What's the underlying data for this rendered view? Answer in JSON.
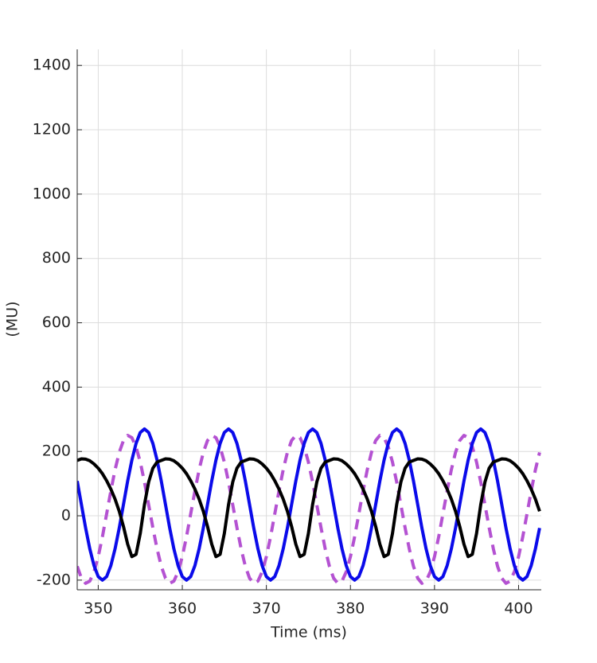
{
  "chart_data": {
    "type": "line",
    "xlabel": "Time (ms)",
    "ylabel": "(MU)",
    "xlim": [
      347.5,
      402.7
    ],
    "ylim": [
      -230,
      1450
    ],
    "xticks": [
      350,
      360,
      370,
      380,
      390,
      400
    ],
    "yticks": [
      -200,
      0,
      200,
      400,
      600,
      800,
      1000,
      1200,
      1400
    ],
    "grid": true,
    "x": [
      347.5,
      348,
      348.5,
      349,
      349.5,
      350,
      350.5,
      351,
      351.5,
      352,
      352.5,
      353,
      353.5,
      354,
      354.5,
      355,
      355.5,
      356,
      356.5,
      357,
      357.5,
      358,
      358.5,
      359,
      359.5,
      360,
      360.5,
      361,
      361.5,
      362,
      362.5,
      363,
      363.5,
      364,
      364.5,
      365,
      365.5,
      366,
      366.5,
      367,
      367.5,
      368,
      368.5,
      369,
      369.5,
      370,
      370.5,
      371,
      371.5,
      372,
      372.5,
      373,
      373.5,
      374,
      374.5,
      375,
      375.5,
      376,
      376.5,
      377,
      377.5,
      378,
      378.5,
      379,
      379.5,
      380,
      380.5,
      381,
      381.5,
      382,
      382.5,
      383,
      383.5,
      384,
      384.5,
      385,
      385.5,
      386,
      386.5,
      387,
      387.5,
      388,
      388.5,
      389,
      389.5,
      390,
      390.5,
      391,
      391.5,
      392,
      392.5,
      393,
      393.5,
      394,
      394.5,
      395,
      395.5,
      396,
      396.5,
      397,
      397.5,
      398,
      398.5,
      399,
      399.5,
      400,
      400.5,
      401,
      401.5,
      402,
      402.5
    ],
    "series": [
      {
        "color": "#b452d2",
        "linestyle": "dashed",
        "values": [
          -157,
          -194,
          -210,
          -203,
          -174,
          -127,
          -65,
          6,
          77,
          143,
          197,
          234,
          250,
          243,
          214,
          167,
          105,
          34,
          -37,
          -103,
          -157,
          -194,
          -210,
          -203,
          -174,
          -127,
          -65,
          6,
          77,
          143,
          197,
          234,
          250,
          243,
          214,
          167,
          105,
          34,
          -37,
          -103,
          -157,
          -194,
          -210,
          -203,
          -174,
          -127,
          -65,
          6,
          77,
          143,
          197,
          234,
          250,
          243,
          214,
          167,
          105,
          34,
          -37,
          -103,
          -157,
          -194,
          -210,
          -203,
          -174,
          -127,
          -65,
          6,
          77,
          143,
          197,
          234,
          250,
          243,
          214,
          167,
          105,
          34,
          -37,
          -103,
          -157,
          -194,
          -210,
          -203,
          -174,
          -127,
          -65,
          6,
          77,
          143,
          197,
          234,
          250,
          243,
          214,
          167,
          105,
          34,
          -37,
          -103,
          -157,
          -194,
          -210,
          -203,
          -174,
          -127,
          -65,
          6,
          77,
          143,
          197
        ]
      },
      {
        "color": "#0b0bea",
        "linestyle": "solid",
        "values": [
          108,
          35,
          -38,
          -103,
          -155,
          -189,
          -200,
          -189,
          -155,
          -103,
          -38,
          35,
          108,
          173,
          225,
          259,
          270,
          259,
          225,
          173,
          108,
          35,
          -38,
          -103,
          -155,
          -189,
          -200,
          -189,
          -155,
          -103,
          -38,
          35,
          108,
          173,
          225,
          259,
          270,
          259,
          225,
          173,
          108,
          35,
          -38,
          -103,
          -155,
          -189,
          -200,
          -189,
          -155,
          -103,
          -38,
          35,
          108,
          173,
          225,
          259,
          270,
          259,
          225,
          173,
          108,
          35,
          -38,
          -103,
          -155,
          -189,
          -200,
          -189,
          -155,
          -103,
          -38,
          35,
          108,
          173,
          225,
          259,
          270,
          259,
          225,
          173,
          108,
          35,
          -38,
          -103,
          -155,
          -189,
          -200,
          -189,
          -155,
          -103,
          -38,
          35,
          108,
          173,
          225,
          259,
          270,
          259,
          225,
          173,
          108,
          35,
          -38,
          -103,
          -155,
          -189,
          -200,
          -189,
          -155,
          -103,
          -38
        ]
      },
      {
        "color": "#000000",
        "linestyle": "solid",
        "values": [
          172,
          177,
          176,
          171,
          161,
          148,
          131,
          109,
          83,
          52,
          14,
          -33,
          -88,
          -127,
          -120,
          -55,
          35,
          105,
          148,
          167,
          172,
          177,
          176,
          171,
          161,
          148,
          131,
          109,
          83,
          52,
          14,
          -33,
          -88,
          -127,
          -120,
          -55,
          35,
          105,
          148,
          167,
          172,
          177,
          176,
          171,
          161,
          148,
          131,
          109,
          83,
          52,
          14,
          -33,
          -88,
          -127,
          -120,
          -55,
          35,
          105,
          148,
          167,
          172,
          177,
          176,
          171,
          161,
          148,
          131,
          109,
          83,
          52,
          14,
          -33,
          -88,
          -127,
          -120,
          -55,
          35,
          105,
          148,
          167,
          172,
          177,
          176,
          171,
          161,
          148,
          131,
          109,
          83,
          52,
          14,
          -33,
          -88,
          -127,
          -120,
          -55,
          35,
          105,
          148,
          167,
          172,
          177,
          176,
          171,
          161,
          148,
          131,
          109,
          83,
          52,
          14
        ]
      }
    ]
  }
}
